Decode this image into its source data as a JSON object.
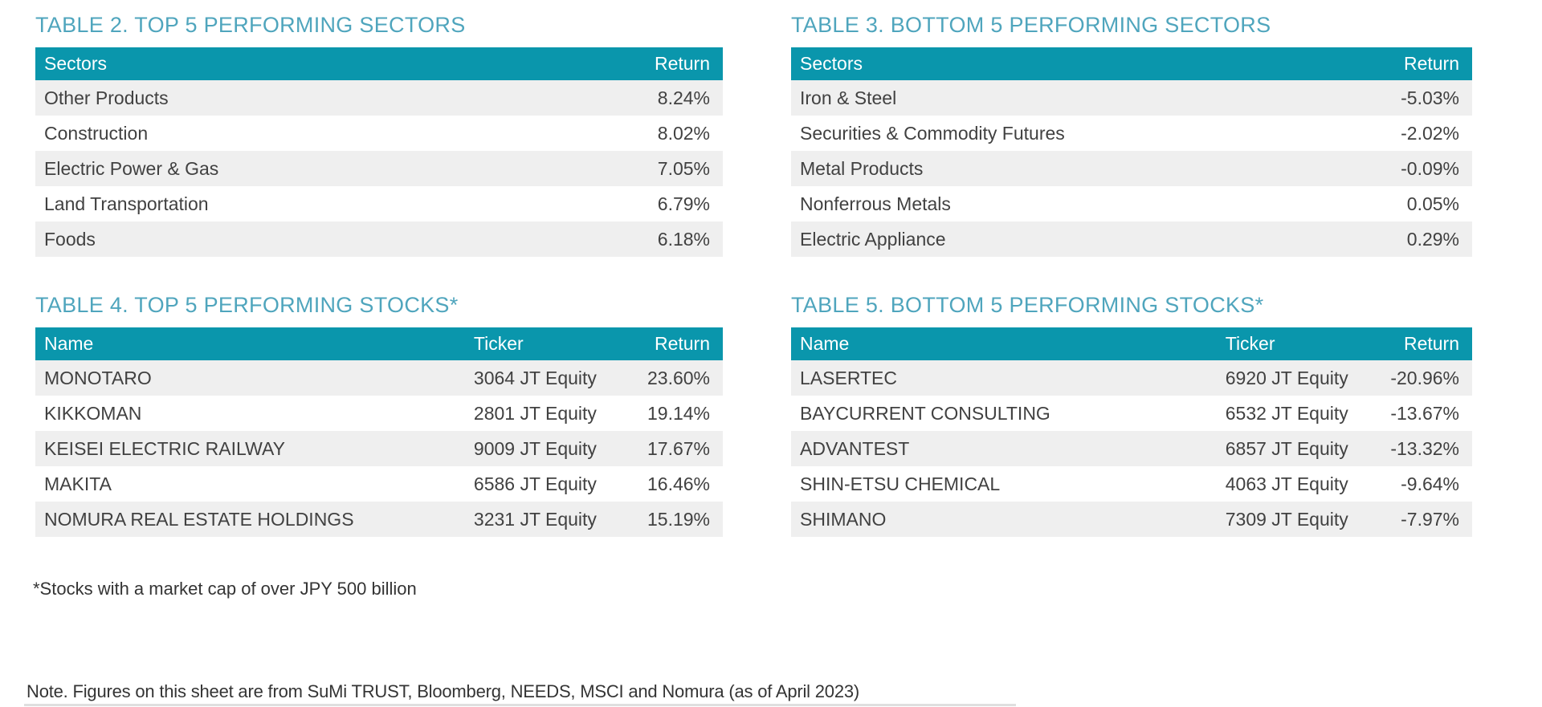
{
  "colors": {
    "table_header_bg": "#0A96AC",
    "table_header_text": "#FFFFFF",
    "table_title_text": "#4FA5BD",
    "row_stripe_bg": "#EFEFEF",
    "row_plain_bg": "#FFFFFF",
    "body_text": "#414141",
    "page_bg": "#FFFFFF"
  },
  "tables": [
    {
      "id": "top-sectors",
      "title": "TABLE 2. TOP 5 PERFORMING SECTORS",
      "columns": [
        "Sectors",
        "Return"
      ],
      "rows": [
        [
          "Other Products",
          "8.24%"
        ],
        [
          "Construction",
          "8.02%"
        ],
        [
          "Electric Power & Gas",
          "7.05%"
        ],
        [
          "Land Transportation",
          "6.79%"
        ],
        [
          "Foods",
          "6.18%"
        ]
      ]
    },
    {
      "id": "bottom-sectors",
      "title": "TABLE 3. BOTTOM 5 PERFORMING SECTORS",
      "columns": [
        "Sectors",
        "Return"
      ],
      "rows": [
        [
          "Iron & Steel",
          "-5.03%"
        ],
        [
          "Securities & Commodity Futures",
          "-2.02%"
        ],
        [
          "Metal Products",
          "-0.09%"
        ],
        [
          "Nonferrous Metals",
          "0.05%"
        ],
        [
          "Electric Appliance",
          "0.29%"
        ]
      ]
    },
    {
      "id": "top-stocks",
      "title": "TABLE 4. TOP 5 PERFORMING STOCKS*",
      "columns": [
        "Name",
        "Ticker",
        "Return"
      ],
      "rows": [
        [
          "MONOTARO",
          "3064 JT Equity",
          "23.60%"
        ],
        [
          "KIKKOMAN",
          "2801 JT Equity",
          "19.14%"
        ],
        [
          "KEISEI ELECTRIC RAILWAY",
          "9009 JT Equity",
          "17.67%"
        ],
        [
          "MAKITA",
          "6586 JT Equity",
          "16.46%"
        ],
        [
          "NOMURA REAL ESTATE HOLDINGS",
          "3231 JT Equity",
          "15.19%"
        ]
      ]
    },
    {
      "id": "bottom-stocks",
      "title": "TABLE 5. BOTTOM 5 PERFORMING STOCKS*",
      "columns": [
        "Name",
        "Ticker",
        "Return"
      ],
      "rows": [
        [
          "LASERTEC",
          "6920 JT Equity",
          "-20.96%"
        ],
        [
          "BAYCURRENT CONSULTING",
          "6532 JT Equity",
          "-13.67%"
        ],
        [
          "ADVANTEST",
          "6857 JT Equity",
          "-13.32%"
        ],
        [
          "SHIN-ETSU CHEMICAL",
          "4063 JT Equity",
          "-9.64%"
        ],
        [
          "SHIMANO",
          "7309 JT Equity",
          "-7.97%"
        ]
      ]
    }
  ],
  "footnotes": {
    "market_cap": "*Stocks with a market cap of over JPY 500 billion",
    "source": "Note. Figures on this sheet are from SuMi TRUST, Bloomberg, NEEDS, MSCI and Nomura (as of April 2023)"
  }
}
